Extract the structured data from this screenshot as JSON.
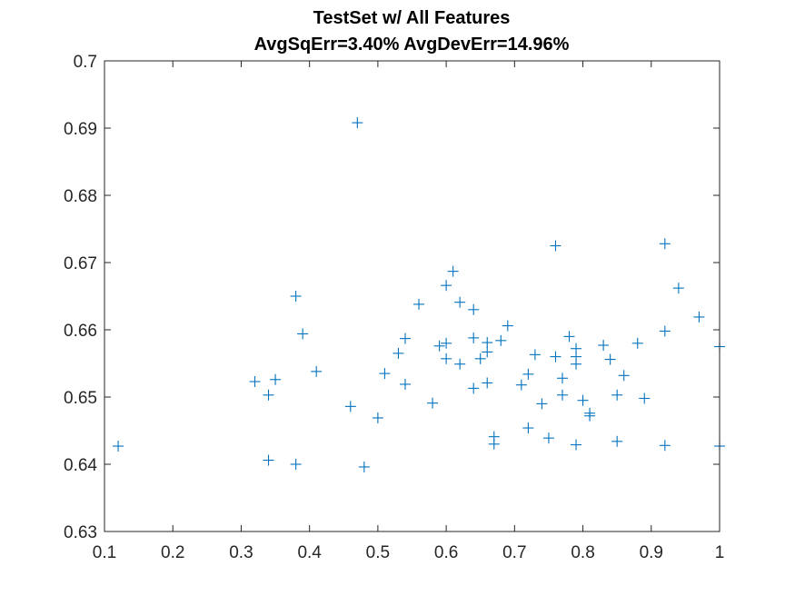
{
  "chart_data": {
    "type": "scatter",
    "title": [
      "TestSet w/ All Features",
      "AvgSqErr=3.40% AvgDevErr=14.96%"
    ],
    "xlabel": "",
    "ylabel": "",
    "xlim": [
      0.1,
      1.0
    ],
    "ylim": [
      0.63,
      0.7
    ],
    "xticks": [
      "0.1",
      "0.2",
      "0.3",
      "0.4",
      "0.5",
      "0.6",
      "0.7",
      "0.8",
      "0.9",
      "1"
    ],
    "yticks": [
      "0.63",
      "0.64",
      "0.65",
      "0.66",
      "0.67",
      "0.68",
      "0.69",
      "0.7"
    ],
    "xtick_values": [
      0.1,
      0.2,
      0.3,
      0.4,
      0.5,
      0.6,
      0.7,
      0.8,
      0.9,
      1.0
    ],
    "ytick_values": [
      0.63,
      0.64,
      0.65,
      0.66,
      0.67,
      0.68,
      0.69,
      0.7
    ],
    "grid": false,
    "marker": "+",
    "color": "#0072BD",
    "points": [
      [
        0.12,
        0.6427
      ],
      [
        0.32,
        0.6523
      ],
      [
        0.34,
        0.6503
      ],
      [
        0.34,
        0.6406
      ],
      [
        0.35,
        0.6526
      ],
      [
        0.38,
        0.665
      ],
      [
        0.38,
        0.64
      ],
      [
        0.39,
        0.6594
      ],
      [
        0.41,
        0.6538
      ],
      [
        0.46,
        0.6486
      ],
      [
        0.47,
        0.6908
      ],
      [
        0.48,
        0.6396
      ],
      [
        0.5,
        0.6469
      ],
      [
        0.51,
        0.6535
      ],
      [
        0.53,
        0.6565
      ],
      [
        0.54,
        0.6587
      ],
      [
        0.54,
        0.6519
      ],
      [
        0.56,
        0.6638
      ],
      [
        0.58,
        0.6491
      ],
      [
        0.59,
        0.6576
      ],
      [
        0.6,
        0.658
      ],
      [
        0.6,
        0.6557
      ],
      [
        0.6,
        0.6666
      ],
      [
        0.61,
        0.6687
      ],
      [
        0.62,
        0.6641
      ],
      [
        0.62,
        0.6549
      ],
      [
        0.64,
        0.663
      ],
      [
        0.64,
        0.6588
      ],
      [
        0.64,
        0.6513
      ],
      [
        0.65,
        0.6557
      ],
      [
        0.66,
        0.6581
      ],
      [
        0.66,
        0.6567
      ],
      [
        0.66,
        0.6521
      ],
      [
        0.67,
        0.6441
      ],
      [
        0.67,
        0.643
      ],
      [
        0.68,
        0.6584
      ],
      [
        0.69,
        0.6606
      ],
      [
        0.71,
        0.6518
      ],
      [
        0.72,
        0.6534
      ],
      [
        0.72,
        0.6454
      ],
      [
        0.73,
        0.6563
      ],
      [
        0.74,
        0.649
      ],
      [
        0.75,
        0.6439
      ],
      [
        0.76,
        0.6725
      ],
      [
        0.76,
        0.656
      ],
      [
        0.77,
        0.6528
      ],
      [
        0.77,
        0.6503
      ],
      [
        0.78,
        0.659
      ],
      [
        0.79,
        0.6572
      ],
      [
        0.79,
        0.656
      ],
      [
        0.79,
        0.6549
      ],
      [
        0.79,
        0.6429
      ],
      [
        0.8,
        0.6495
      ],
      [
        0.81,
        0.6476
      ],
      [
        0.81,
        0.6472
      ],
      [
        0.83,
        0.6577
      ],
      [
        0.84,
        0.6556
      ],
      [
        0.85,
        0.6503
      ],
      [
        0.85,
        0.6434
      ],
      [
        0.86,
        0.6532
      ],
      [
        0.88,
        0.658
      ],
      [
        0.89,
        0.6498
      ],
      [
        0.92,
        0.6728
      ],
      [
        0.92,
        0.6598
      ],
      [
        0.92,
        0.6428
      ],
      [
        0.94,
        0.6662
      ],
      [
        0.97,
        0.6619
      ],
      [
        1.0,
        0.6575
      ],
      [
        1.0,
        0.6427
      ]
    ]
  }
}
